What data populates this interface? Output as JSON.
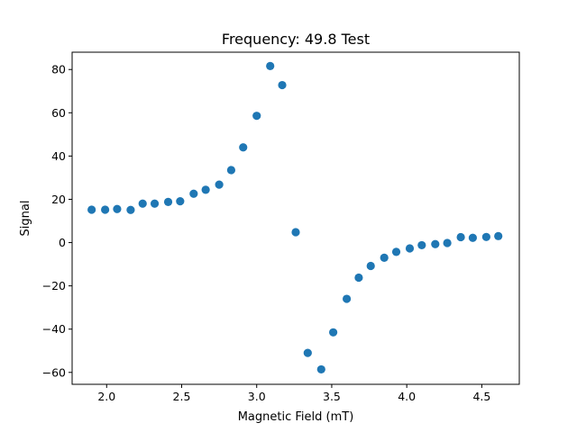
{
  "chart_data": {
    "type": "scatter",
    "title": "Frequency: 49.8 Test",
    "xlabel": "Magnetic Field (mT)",
    "ylabel": "Signal",
    "xlim": [
      1.77,
      4.75
    ],
    "ylim": [
      -65.5,
      88
    ],
    "xticks": [
      2.0,
      2.5,
      3.0,
      3.5,
      4.0,
      4.5
    ],
    "xtick_labels": [
      "2.0",
      "2.5",
      "3.0",
      "3.5",
      "4.0",
      "4.5"
    ],
    "yticks": [
      -60,
      -40,
      -20,
      0,
      20,
      40,
      60,
      80
    ],
    "ytick_labels": [
      "−60",
      "−40",
      "−20",
      "0",
      "20",
      "40",
      "60",
      "80"
    ],
    "grid": false,
    "marker_color": "#1f77b4",
    "series": [
      {
        "x": [
          1.9,
          1.99,
          2.07,
          2.16,
          2.24,
          2.32,
          2.41,
          2.49,
          2.58,
          2.66,
          2.75,
          2.83,
          2.91,
          3.0,
          3.09,
          3.17,
          3.26,
          3.34,
          3.43,
          3.51,
          3.6,
          3.68,
          3.76,
          3.85,
          3.93,
          4.02,
          4.1,
          4.19,
          4.27,
          4.36,
          4.44,
          4.53,
          4.61
        ],
        "y": [
          15.2,
          15.2,
          15.5,
          15.1,
          18.0,
          18.0,
          18.8,
          19.1,
          22.6,
          24.4,
          26.8,
          33.5,
          44.0,
          58.6,
          81.6,
          72.8,
          4.8,
          -51.0,
          -58.6,
          -41.5,
          -26.0,
          -16.2,
          -10.8,
          -7.0,
          -4.3,
          -2.7,
          -1.2,
          -0.7,
          -0.2,
          2.5,
          2.2,
          2.6,
          3.0
        ]
      }
    ]
  }
}
